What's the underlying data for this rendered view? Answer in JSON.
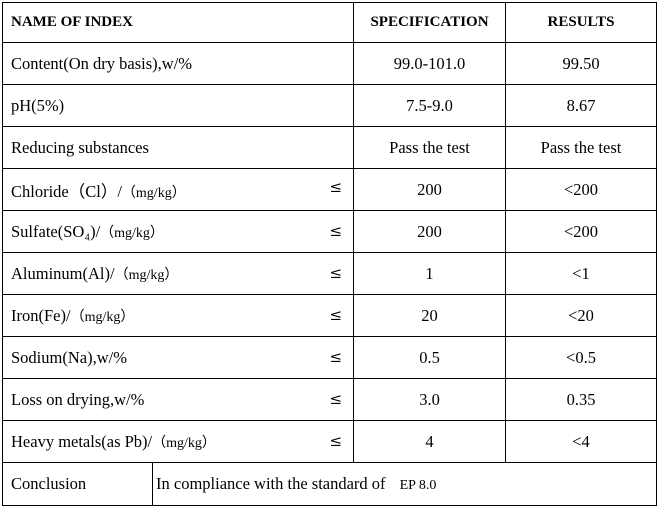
{
  "headers": {
    "name": "NAME OF INDEX",
    "spec": "SPECIFICATION",
    "results": "RESULTS"
  },
  "rows": [
    {
      "name": "Content(On dry basis),w/%",
      "unit": "",
      "leq": "",
      "spec": "99.0-101.0",
      "result": "99.50"
    },
    {
      "name": "pH(5%)",
      "unit": "",
      "leq": "",
      "spec": "7.5-9.0",
      "result": "8.67"
    },
    {
      "name": "Reducing substances",
      "unit": "",
      "leq": "",
      "spec": "Pass the test",
      "result": "Pass the test"
    },
    {
      "name": "Chloride（Cl）/",
      "unit": "（mg/kg）",
      "leq": "≤",
      "spec": "200",
      "result": "<200"
    },
    {
      "name": "Sulfate(SO₄)/",
      "unit": "（mg/kg）",
      "leq": "≤",
      "spec": "200",
      "result": "<200"
    },
    {
      "name": "Aluminum(Al)/",
      "unit": "（mg/kg）",
      "leq": "≤",
      "spec": "1",
      "result": "<1"
    },
    {
      "name": "Iron(Fe)/",
      "unit": "（mg/kg）",
      "leq": "≤",
      "spec": "20",
      "result": "<20"
    },
    {
      "name": "Sodium(Na),w/%",
      "unit": "",
      "leq": "≤",
      "spec": "0.5",
      "result": "<0.5"
    },
    {
      "name": "Loss on drying,w/%",
      "unit": "",
      "leq": "≤",
      "spec": "3.0",
      "result": "0.35"
    },
    {
      "name": "Heavy metals(as Pb)/",
      "unit": "（mg/kg）",
      "leq": "≤",
      "spec": "4",
      "result": "<4"
    }
  ],
  "conclusion": {
    "label": "Conclusion",
    "text": "In compliance with the standard of",
    "standard": "EP 8.0"
  }
}
